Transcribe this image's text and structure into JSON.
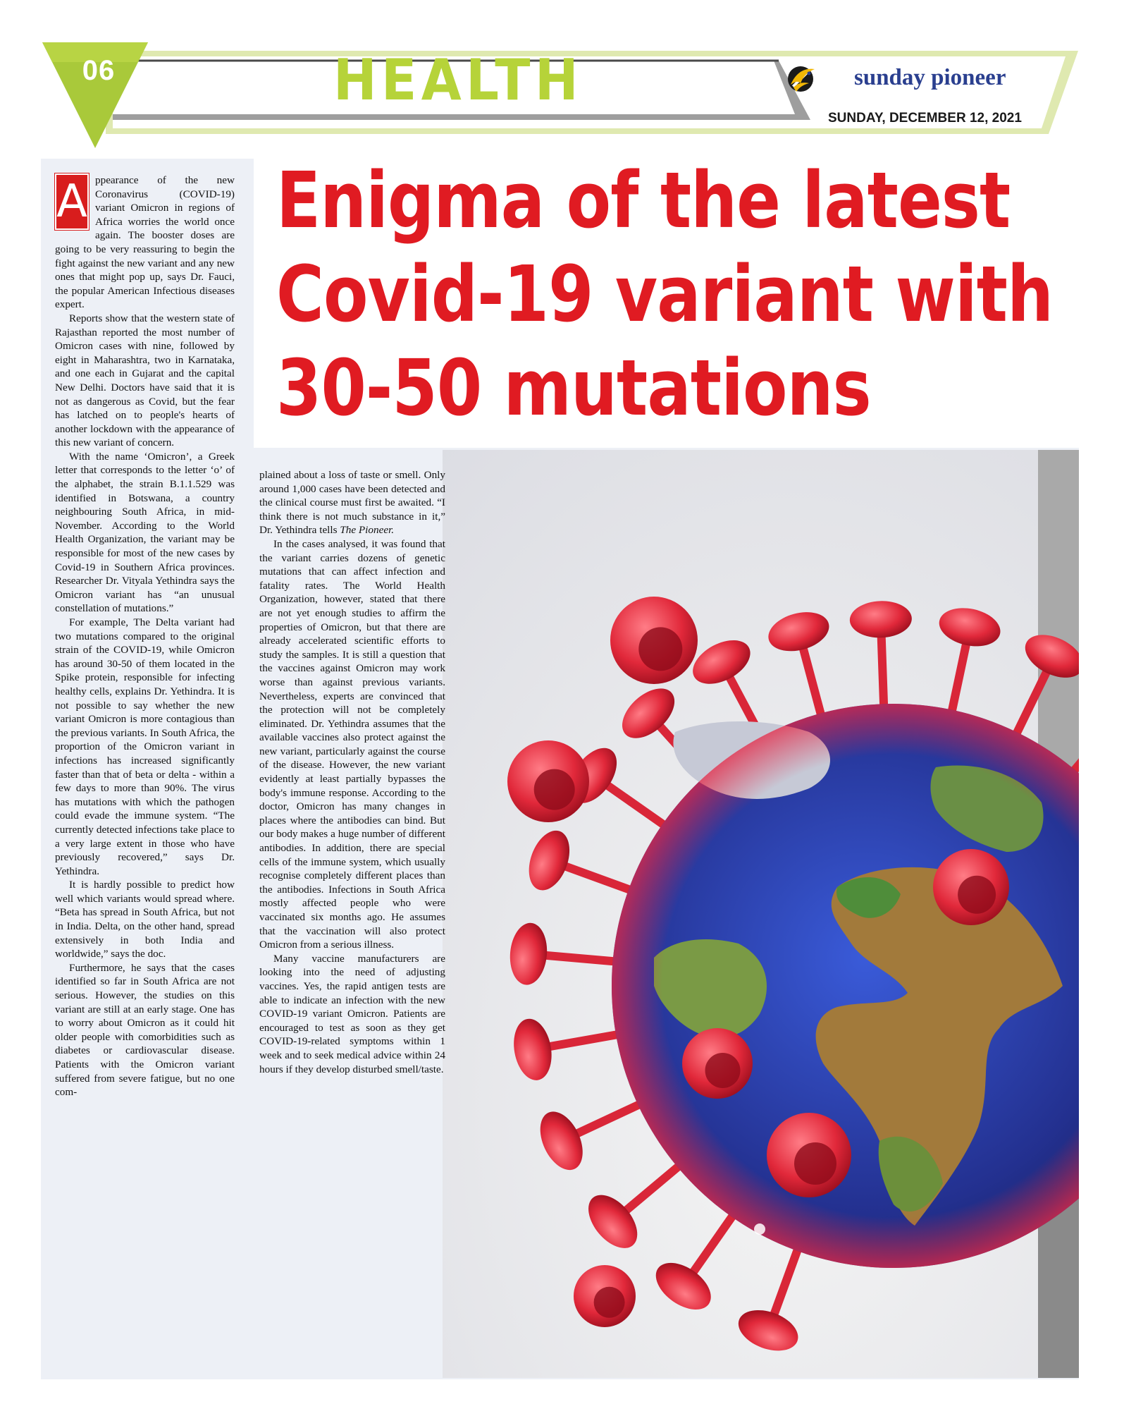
{
  "header": {
    "page_number": "06",
    "section": "HEALTH",
    "publication": "sunday pioneer",
    "date": "SUNDAY, DECEMBER 12, 2021",
    "colors": {
      "accent_green": "#b6d339",
      "headline_red": "#e01b22",
      "logo_blue": "#2a3f8f"
    }
  },
  "article": {
    "headline": {
      "line1": "Enigma of the latest",
      "line2": "Covid-19 variant with",
      "line3": "30-50 mutations"
    },
    "drop_cap": "A",
    "left_column": {
      "p1": "ppearance of the new Coronavirus (COVID-19) variant Omicron in regions of Africa worries the world once again. The booster doses are going to be very reassuring to begin the fight against the new variant and any new ones that might pop up, says Dr. Fauci, the popular American Infectious diseases expert.",
      "p2": "Reports show that the western state of Rajasthan reported the most number of Omicron cases with nine, followed by eight in Maharashtra, two in Karnataka, and one each in Gujarat and the capital New Delhi. Doctors have said that it is not as dangerous as Covid, but the fear has latched on to people's hearts of another lockdown with the appearance of this new variant of concern.",
      "p3": "With the name ‘Omicron’, a Greek letter that corresponds to the letter ‘o’ of the alphabet, the strain B.1.1.529 was identified in Botswana, a country neighbouring South Africa, in mid-November. According to the World Health Organization, the variant may be responsible for most of the new cases by Covid-19 in Southern Africa provinces. Researcher Dr. Vityala Yethindra says the Omicron variant has “an unusual constellation of mutations.”",
      "p4": "For example, The Delta variant had two mutations compared to the original strain of the COVID-19, while Omicron has around 30-50 of them located in the Spike protein, responsible for infecting healthy cells, explains Dr. Yethindra. It is not possible to say whether the new variant Omicron is more contagious than the previous variants. In South Africa, the proportion of the Omicron variant in infections has increased significantly faster than that of beta or delta - within a few days to more than 90%. The virus has mutations with which the pathogen could evade the immune system. “The currently detected infections take place to a very large extent in those who have previously recovered,” says Dr. Yethindra.",
      "p5": "It is hardly possible to predict how well which variants would spread where. “Beta has spread in South Africa, but not in India. Delta, on the other hand, spread extensively in both India and worldwide,” says the doc.",
      "p6": "Furthermore, he says that the cases identified so far in South Africa are not serious. However, the studies on this variant are still at an early stage. One has to worry about Omicron as it could hit older people with comorbidities such as diabetes or cardiovascular disease. Patients with the Omicron variant suffered from severe fatigue, but no one com-"
    },
    "middle_column": {
      "p1a": "plained about a loss of taste or smell. Only around 1,000 cases have been detected and the clinical course must first be awaited. “I think there is not much substance in it,” Dr. Yethindra tells ",
      "p1b": "The Pioneer.",
      "p2": "In the cases analysed, it was found that the variant carries dozens of genetic mutations that can affect infection and fatality rates. The World Health Organization, however, stated that there are not yet enough studies to affirm the properties of Omicron, but that there are already accelerated scientific efforts to study the samples. It is still a question that the vaccines against Omicron may work worse than against previous variants. Nevertheless, experts are convinced that the protection will not be completely eliminated. Dr. Yethindra assumes that the available vaccines also protect against the new variant, particularly against the course of the disease. However, the new variant evidently at least partially bypasses the body's immune response. According to the doctor, Omicron has many changes in places where the antibodies can bind. But our body makes a huge number of different antibodies. In addition, there are special cells of the immune system, which usually recognise completely different places than the antibodies. Infections in South Africa mostly affected people who were vaccinated six months ago. He assumes that the vaccination will also protect Omicron from a serious illness.",
      "p3": "Many vaccine manufacturers are looking into the need of adjusting vaccines. Yes, the rapid antigen tests are able to indicate an infection with the new COVID-19 variant Omicron. Patients are encouraged to test as soon as they get COVID-19-related symptoms within 1 week and to seek medical advice within 24 hours if they develop disturbed smell/taste."
    }
  }
}
